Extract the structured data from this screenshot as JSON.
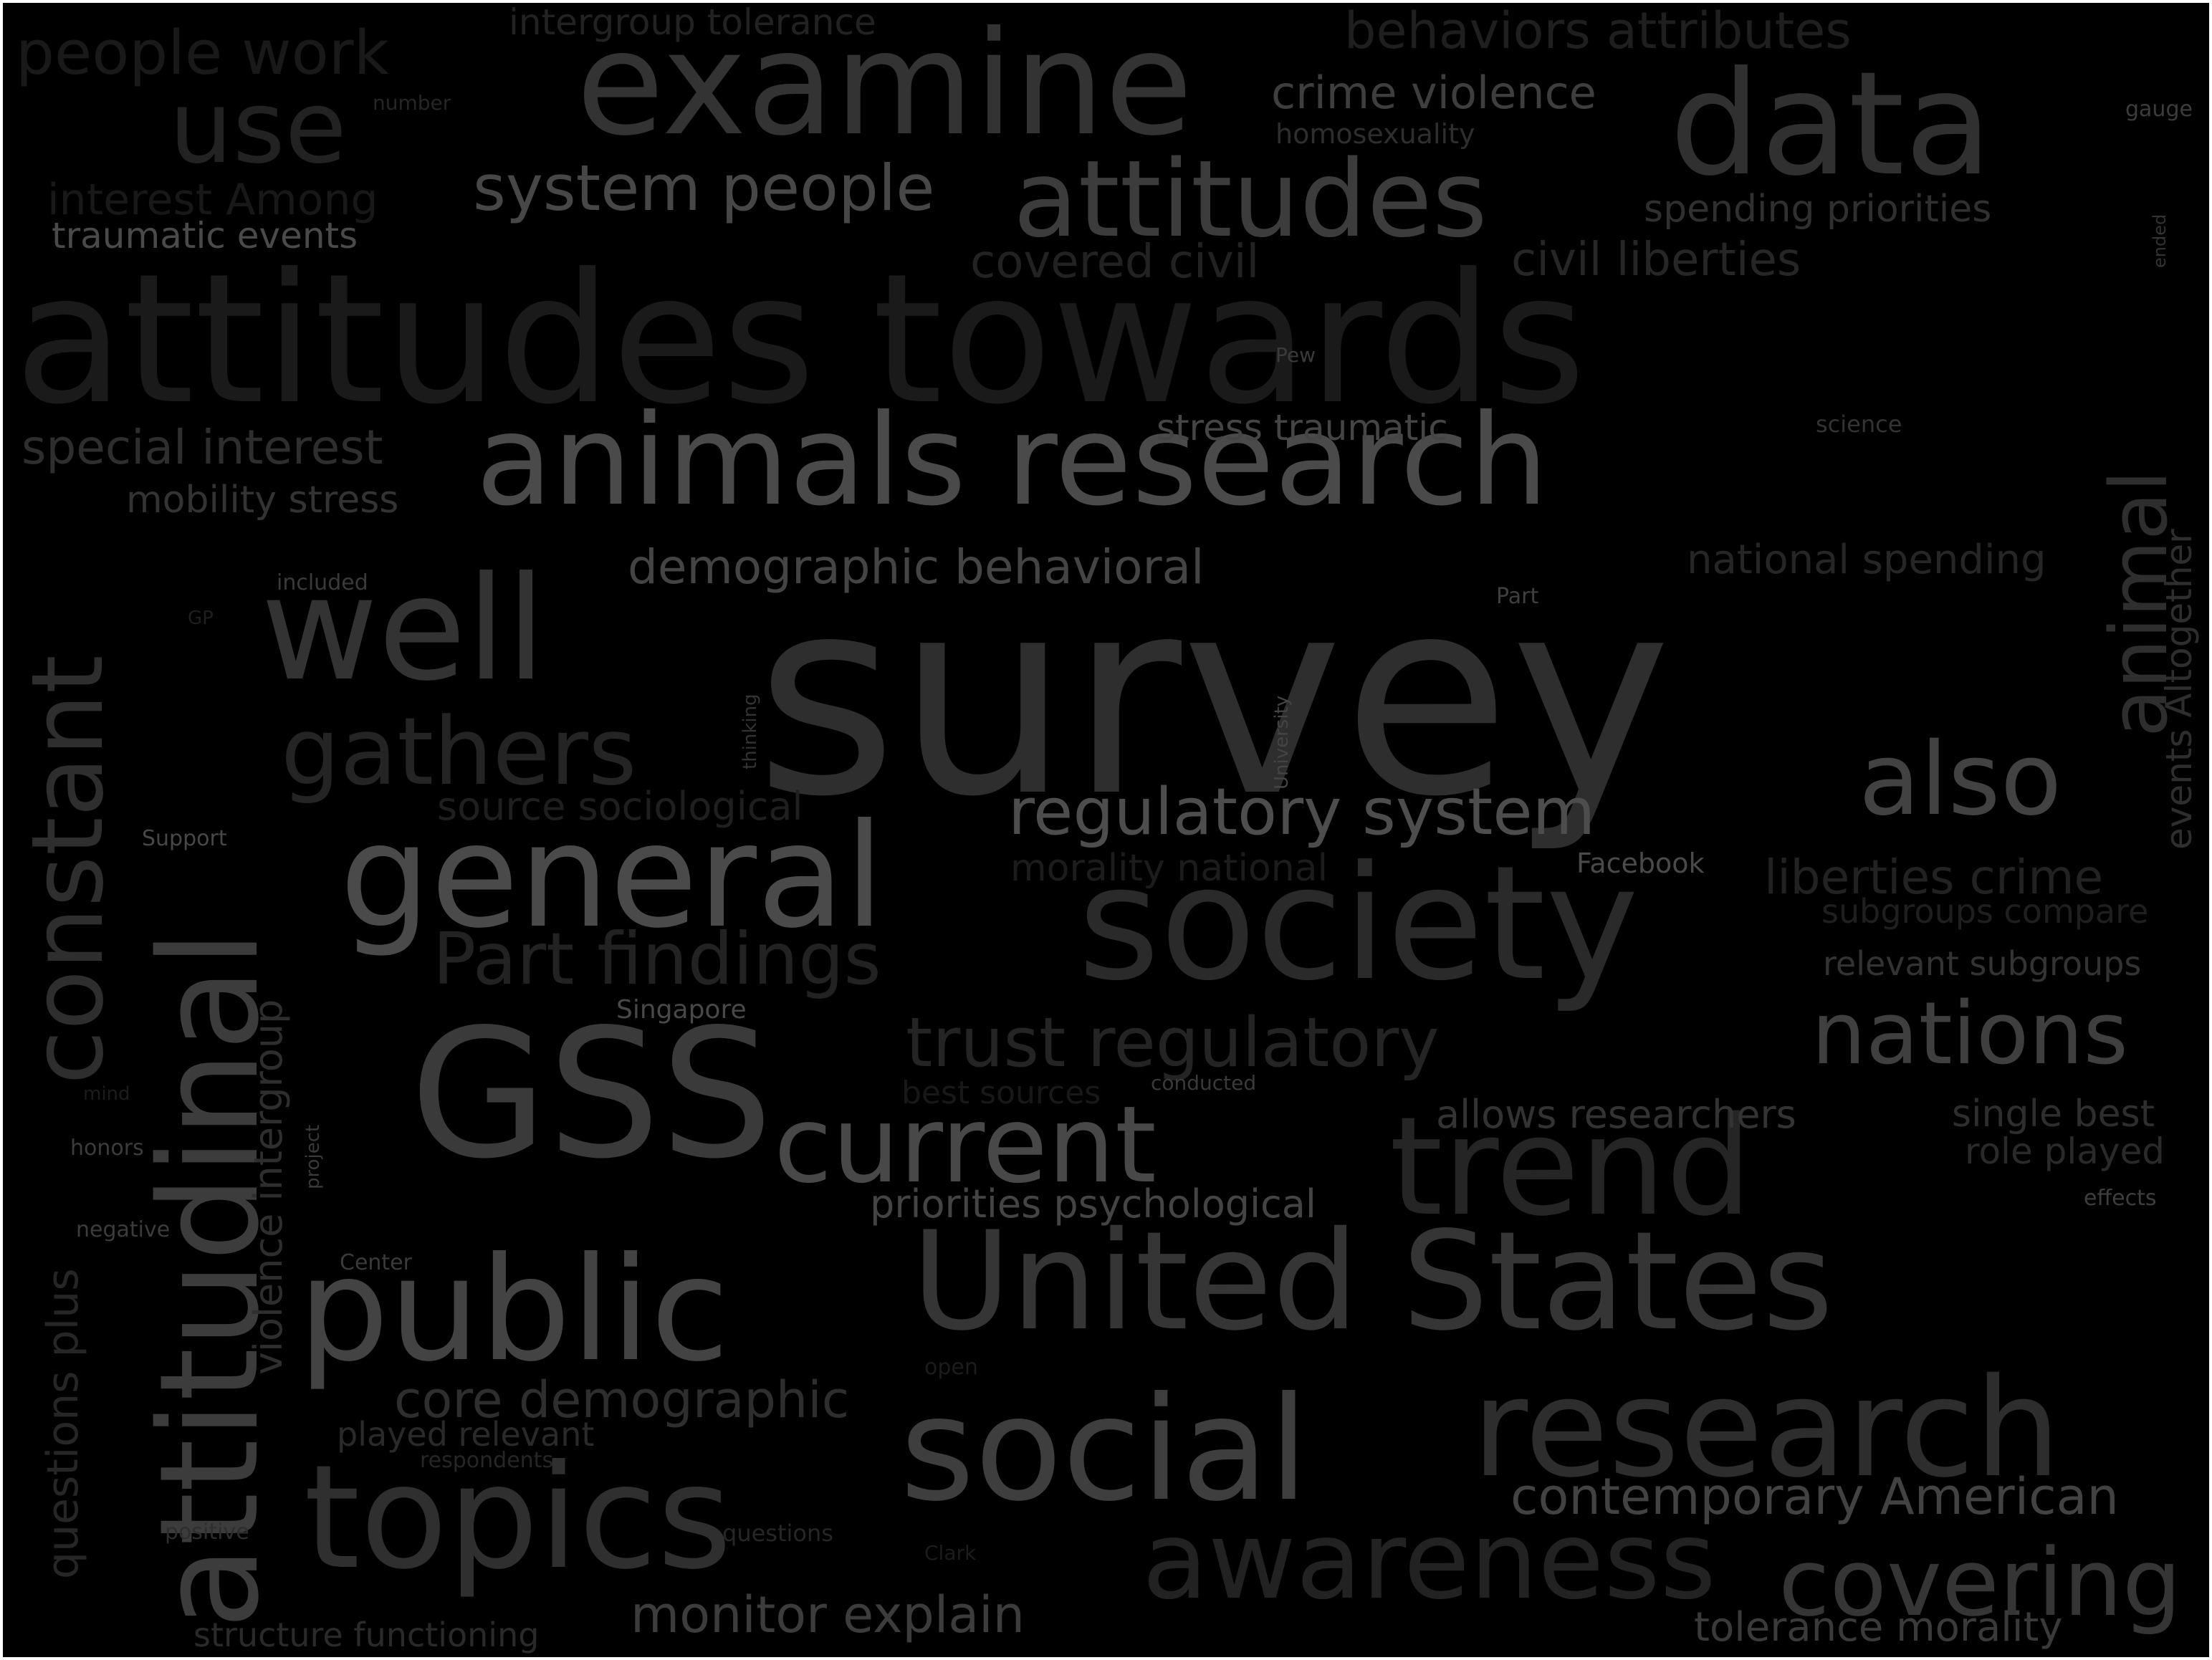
{
  "words": [
    {
      "text": "attitudes towards",
      "color": "#1a1a1a"
    },
    {
      "text": "survey",
      "color": "#2e2e2e"
    },
    {
      "text": "animals research",
      "color": "#4a4a4a"
    },
    {
      "text": "examine",
      "color": "#333333"
    },
    {
      "text": "data",
      "color": "#303030"
    },
    {
      "text": "attitudes",
      "color": "#3c3c3c"
    },
    {
      "text": "society",
      "color": "#2a2a2a"
    },
    {
      "text": "GSS",
      "color": "#3a3a3a"
    },
    {
      "text": "general",
      "color": "#4a4a4a"
    },
    {
      "text": "United States",
      "color": "#353535"
    },
    {
      "text": "public",
      "color": "#434343"
    },
    {
      "text": "social",
      "color": "#3e3e3e"
    },
    {
      "text": "research",
      "color": "#2d2d2d"
    },
    {
      "text": "topics",
      "color": "#2f2f2f"
    },
    {
      "text": "trend",
      "color": "#252525"
    },
    {
      "text": "current",
      "color": "#484848"
    },
    {
      "text": "well",
      "color": "#333333"
    },
    {
      "text": "use",
      "color": "#222222"
    },
    {
      "text": "gathers",
      "color": "#242424"
    },
    {
      "text": "awareness",
      "color": "#222222"
    },
    {
      "text": "covering",
      "color": "#353535"
    },
    {
      "text": "also",
      "color": "#424242"
    },
    {
      "text": "nations",
      "color": "#3f3f3f"
    },
    {
      "text": "regulatory system",
      "color": "#4d4d4d"
    },
    {
      "text": "trust regulatory",
      "color": "#242424"
    },
    {
      "text": "Part findings",
      "color": "#222222"
    },
    {
      "text": "system people",
      "color": "#474747"
    },
    {
      "text": "people work",
      "color": "#191919"
    },
    {
      "text": "behaviors attributes",
      "color": "#1f1f1f"
    },
    {
      "text": "crime violence",
      "color": "#3e3e3e"
    },
    {
      "text": "covered civil",
      "color": "#222222"
    },
    {
      "text": "civil liberties",
      "color": "#262626"
    },
    {
      "text": "spending priorities",
      "color": "#303030"
    },
    {
      "text": "stress traumatic",
      "color": "#454545"
    },
    {
      "text": "special interest",
      "color": "#2e2e2e"
    },
    {
      "text": "mobility stress",
      "color": "#333333"
    },
    {
      "text": "demographic behavioral",
      "color": "#444444"
    },
    {
      "text": "national spending",
      "color": "#262626"
    },
    {
      "text": "liberties crime",
      "color": "#222222"
    },
    {
      "text": "subgroups compare",
      "color": "#1f1f1f"
    },
    {
      "text": "relevant subgroups",
      "color": "#333333"
    },
    {
      "text": "source sociological",
      "color": "#1f1f1f"
    },
    {
      "text": "morality national",
      "color": "#1c1c1c"
    },
    {
      "text": "allows researchers",
      "color": "#333333"
    },
    {
      "text": "single best",
      "color": "#2e2e2e"
    },
    {
      "text": "role played",
      "color": "#2a2a2a"
    },
    {
      "text": "priorities psychological",
      "color": "#444444"
    },
    {
      "text": "core demographic",
      "color": "#2e2e2e"
    },
    {
      "text": "played relevant",
      "color": "#2a2a2a"
    },
    {
      "text": "contemporary American",
      "color": "#424242"
    },
    {
      "text": "monitor explain",
      "color": "#3c3c3c"
    },
    {
      "text": "tolerance morality",
      "color": "#3a3a3a"
    },
    {
      "text": "structure functioning",
      "color": "#2a2a2a"
    },
    {
      "text": "intergroup tolerance",
      "color": "#222222"
    },
    {
      "text": "homosexuality",
      "color": "#2e2e2e"
    },
    {
      "text": "interest Among",
      "color": "#181818"
    },
    {
      "text": "traumatic events",
      "color": "#4a4a4a"
    },
    {
      "text": "best sources",
      "color": "#181818"
    },
    {
      "text": "attitudinal",
      "color": "#3c3c3c"
    },
    {
      "text": "constant",
      "color": "#2e2e2e"
    },
    {
      "text": "violence intergroup",
      "color": "#2e2e2e"
    },
    {
      "text": "questions plus",
      "color": "#262626"
    },
    {
      "text": "animal",
      "color": "#2e2e2e"
    },
    {
      "text": "events Altogether",
      "color": "#2e2e2e"
    },
    {
      "text": "number",
      "color": "#262626"
    },
    {
      "text": "gauge",
      "color": "#3c3c3c"
    },
    {
      "text": "Pew",
      "color": "#3a3a3a"
    },
    {
      "text": "science",
      "color": "#333333"
    },
    {
      "text": "included",
      "color": "#3a3a3a"
    },
    {
      "text": "Part",
      "color": "#3f3f3f"
    },
    {
      "text": "GP",
      "color": "#1f1f1f"
    },
    {
      "text": "Facebook",
      "color": "#4a4a4a"
    },
    {
      "text": "Support",
      "color": "#474747"
    },
    {
      "text": "Singapore",
      "color": "#484848"
    },
    {
      "text": "conducted",
      "color": "#3a3a3a"
    },
    {
      "text": "honors",
      "color": "#3c3c3c"
    },
    {
      "text": "mind",
      "color": "#1c1c1c"
    },
    {
      "text": "negative",
      "color": "#3c3c3c"
    },
    {
      "text": "thinking",
      "color": "#333333"
    },
    {
      "text": "University",
      "color": "#444444"
    },
    {
      "text": "project",
      "color": "#3a3a3a"
    },
    {
      "text": "ended",
      "color": "#333333"
    },
    {
      "text": "Center",
      "color": "#3a3a3a"
    },
    {
      "text": "effects",
      "color": "#3e3e3e"
    },
    {
      "text": "open",
      "color": "#1c1c1c"
    },
    {
      "text": "respondents",
      "color": "#262626"
    },
    {
      "text": "positive",
      "color": "#2e2e2e"
    },
    {
      "text": "questions",
      "color": "#262626"
    },
    {
      "text": "Clark",
      "color": "#1c1c1c"
    }
  ]
}
